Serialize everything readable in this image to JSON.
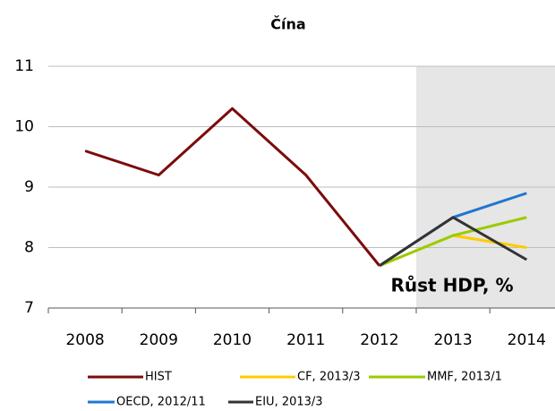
{
  "chart_data": {
    "type": "line",
    "title": "Čína",
    "annotation": "Růst HDP, %",
    "categories": [
      "2008",
      "2009",
      "2010",
      "2011",
      "2012",
      "2013",
      "2014"
    ],
    "series": [
      {
        "name": "HIST",
        "color": "#7b0c0c",
        "values": [
          9.6,
          9.2,
          10.3,
          9.2,
          7.7,
          null,
          null
        ]
      },
      {
        "name": "CF, 2013/3",
        "color": "#ffcc00",
        "values": [
          null,
          null,
          null,
          null,
          7.7,
          8.2,
          8.0
        ]
      },
      {
        "name": "MMF, 2013/1",
        "color": "#99cc00",
        "values": [
          null,
          null,
          null,
          null,
          7.7,
          8.2,
          8.5
        ]
      },
      {
        "name": "OECD, 2012/11",
        "color": "#1f77d0",
        "values": [
          null,
          null,
          null,
          null,
          7.7,
          8.5,
          8.9
        ]
      },
      {
        "name": "EIU, 2013/3",
        "color": "#333333",
        "values": [
          null,
          null,
          null,
          null,
          7.7,
          8.5,
          7.8
        ]
      }
    ],
    "ylim": [
      7,
      11
    ],
    "yticks": [
      7,
      8,
      9,
      10,
      11
    ],
    "grid": true
  }
}
